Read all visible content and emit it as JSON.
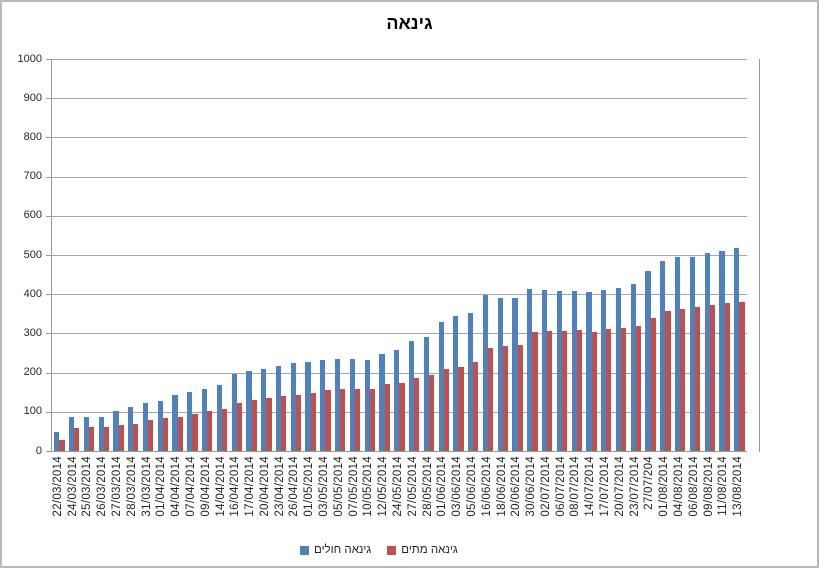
{
  "title": "גינאה",
  "colors": {
    "cases_bar": "#4F81BD",
    "deaths_bar": "#C0504D",
    "gridline": "#A6A6A6",
    "axis_line": "#999999",
    "canvas_border": "#B9B9B9",
    "text": "#262626"
  },
  "y_axis": {
    "ticks": [
      "0",
      "100",
      "200",
      "300",
      "400",
      "500",
      "600",
      "700",
      "800",
      "900",
      "1000"
    ]
  },
  "legend": {
    "items": [
      {
        "label": "גינאה חולים",
        "color": "#4F81BD",
        "name": "cases"
      },
      {
        "label": "גינאה מתים",
        "color": "#C0504D",
        "name": "deaths"
      }
    ]
  },
  "chart_data": {
    "type": "bar",
    "title": "גינאה",
    "xlabel": "",
    "ylabel": "",
    "ylim": [
      0,
      1000
    ],
    "ytick_step": 100,
    "grid": true,
    "legend_position": "bottom",
    "categories": [
      "22/03/2014",
      "24/03/2014",
      "25/03/2014",
      "26/03/2014",
      "27/03/2014",
      "28/03/2014",
      "31/03/2014",
      "01/04/2014",
      "04/04/2014",
      "07/04/2014",
      "09/04/2014",
      "14/04/2014",
      "16/04/2014",
      "17/04/2014",
      "20/04/2014",
      "23/04/2014",
      "26/04/2014",
      "01/05/2014",
      "03/05/2014",
      "05/05/2014",
      "07/05/2014",
      "10/05/2014",
      "12/05/2014",
      "24/05/2014",
      "27/05/2014",
      "28/05/2014",
      "01/06/2014",
      "03/06/2014",
      "05/06/2014",
      "16/06/2014",
      "18/06/2014",
      "20/06/2014",
      "30/06/2014",
      "02/07/2014",
      "06/07/2014",
      "08/07/2014",
      "14/07/2014",
      "17/07/2014",
      "20/07/2014",
      "23/07/2014",
      "27/07/204",
      "01/08/2014",
      "04/08/2014",
      "06/08/2014",
      "09/08/2014",
      "11/08/2014",
      "13/08/2014"
    ],
    "series": [
      {
        "name": "גינאה חולים",
        "color": "#4F81BD",
        "values": [
          49,
          86,
          86,
          86,
          103,
          112,
          122,
          127,
          143,
          151,
          158,
          168,
          197,
          203,
          208,
          218,
          224,
          226,
          231,
          235,
          236,
          233,
          248,
          258,
          281,
          291,
          328,
          344,
          351,
          398,
          390,
          390,
          413,
          412,
          408,
          409,
          406,
          410,
          415,
          427,
          460,
          485,
          495,
          495,
          506,
          510,
          519
        ]
      },
      {
        "name": "גינאה מתים",
        "color": "#C0504D",
        "values": [
          29,
          59,
          60,
          62,
          66,
          70,
          80,
          83,
          86,
          95,
          101,
          108,
          122,
          129,
          136,
          141,
          143,
          149,
          155,
          157,
          158,
          157,
          171,
          174,
          186,
          193,
          208,
          215,
          226,
          264,
          267,
          270,
          303,
          305,
          307,
          309,
          304,
          310,
          314,
          319,
          339,
          358,
          363,
          367,
          373,
          377,
          380
        ]
      }
    ]
  }
}
